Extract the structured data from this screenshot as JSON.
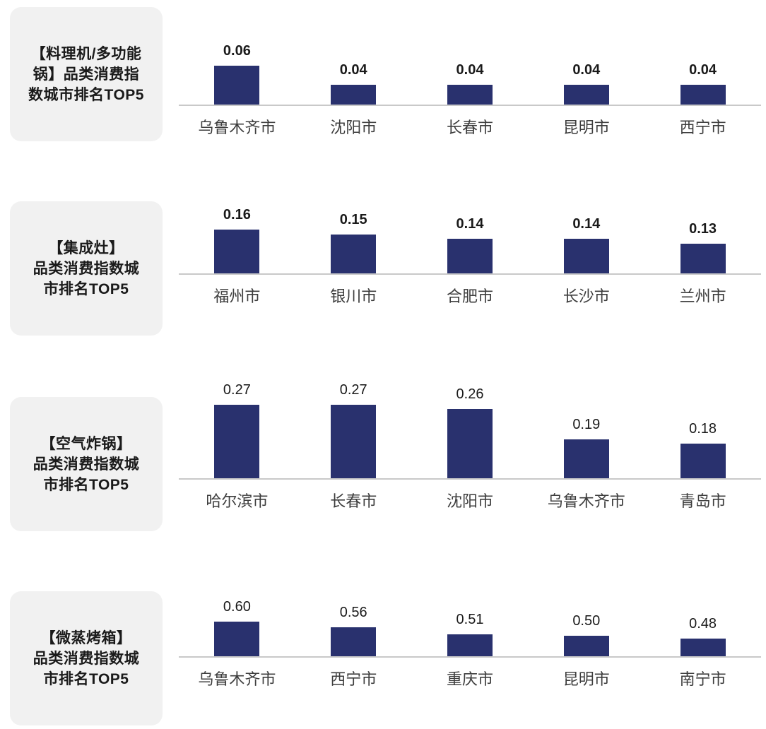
{
  "page": {
    "background": "#ffffff",
    "bar_color": "#29316e",
    "title_box_background": "#f1f1f1",
    "baseline_color": "#c9c9c9"
  },
  "chart_data": [
    {
      "type": "bar",
      "title": "【料理机/多功能锅】品类消费指数城市排名TOP5",
      "title_lines": [
        "【料理机/多功能",
        "锅】品类消费指",
        "数城市排名TOP5"
      ],
      "categories": [
        "乌鲁木齐市",
        "沈阳市",
        "长春市",
        "昆明市",
        "西宁市"
      ],
      "values": [
        0.06,
        0.04,
        0.04,
        0.04,
        0.04
      ],
      "value_labels": [
        "0.06",
        "0.04",
        "0.04",
        "0.04",
        "0.04"
      ],
      "ylim": [
        0.02,
        0.085
      ],
      "grid": false,
      "legend": false
    },
    {
      "type": "bar",
      "title": "【集成灶】品类消费指数城市排名TOP5",
      "title_lines": [
        "【集成灶】",
        "品类消费指数城",
        "市排名TOP5"
      ],
      "categories": [
        "福州市",
        "银川市",
        "合肥市",
        "长沙市",
        "兰州市"
      ],
      "values": [
        0.16,
        0.15,
        0.14,
        0.14,
        0.13
      ],
      "value_labels": [
        "0.16",
        "0.15",
        "0.14",
        "0.14",
        "0.13"
      ],
      "ylim": [
        0.07,
        0.21
      ],
      "grid": false,
      "legend": false
    },
    {
      "type": "bar",
      "title": "【空气炸锅】品类消费指数城市排名TOP5",
      "title_lines": [
        "【空气炸锅】",
        "品类消费指数城",
        "市排名TOP5"
      ],
      "categories": [
        "哈尔滨市",
        "长春市",
        "沈阳市",
        "乌鲁木齐市",
        "青岛市"
      ],
      "values": [
        0.27,
        0.27,
        0.26,
        0.19,
        0.18
      ],
      "value_labels": [
        "0.27",
        "0.27",
        "0.26",
        "0.19",
        "0.18"
      ],
      "ylim": [
        0.1,
        0.32
      ],
      "grid": false,
      "legend": false
    },
    {
      "type": "bar",
      "title": "【微蒸烤箱】品类消费指数城市排名TOP5",
      "title_lines": [
        "【微蒸烤箱】",
        "品类消费指数城",
        "市排名TOP5"
      ],
      "categories": [
        "乌鲁木齐市",
        "西宁市",
        "重庆市",
        "昆明市",
        "南宁市"
      ],
      "values": [
        0.6,
        0.56,
        0.51,
        0.5,
        0.48
      ],
      "value_labels": [
        "0.60",
        "0.56",
        "0.51",
        "0.50",
        "0.48"
      ],
      "ylim": [
        0.36,
        0.78
      ],
      "grid": false,
      "legend": false
    }
  ]
}
